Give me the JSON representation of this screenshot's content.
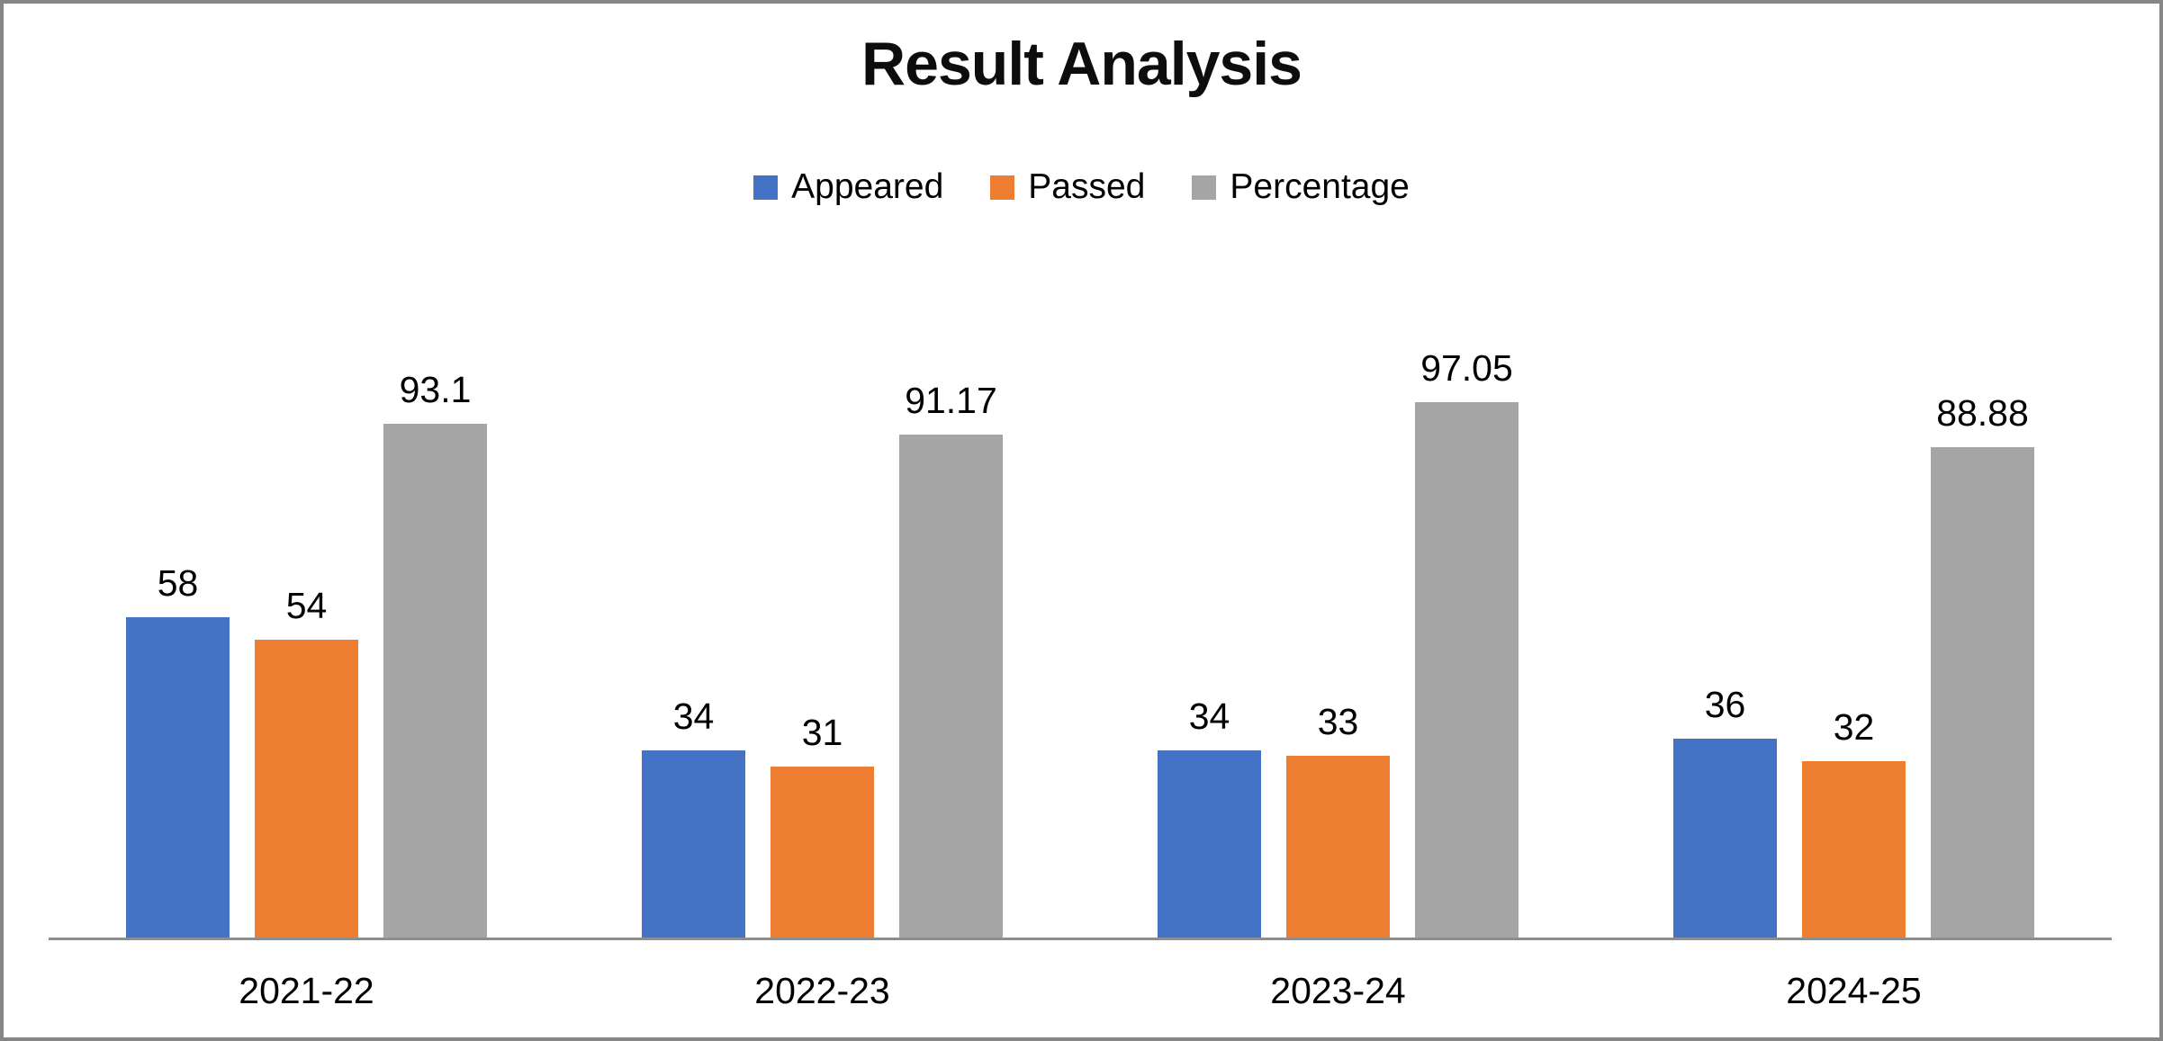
{
  "chart_data": {
    "type": "bar",
    "title": "Result Analysis",
    "categories": [
      "2021-22",
      "2022-23",
      "2023-24",
      "2024-25"
    ],
    "series": [
      {
        "name": "Appeared",
        "color": "#4472C4",
        "values": [
          58,
          34,
          34,
          36
        ]
      },
      {
        "name": "Passed",
        "color": "#ED7D31",
        "values": [
          54,
          31,
          33,
          32
        ]
      },
      {
        "name": "Percentage",
        "color": "#A5A5A5",
        "values": [
          93.1,
          91.17,
          97.05,
          88.88
        ]
      }
    ],
    "legend_position": "top",
    "grid": false,
    "data_labels": true,
    "y_axis_visible": false,
    "axis_line_color": "#8e8e8e",
    "frame_border_color": "#868686",
    "background_color": "#ffffff"
  }
}
